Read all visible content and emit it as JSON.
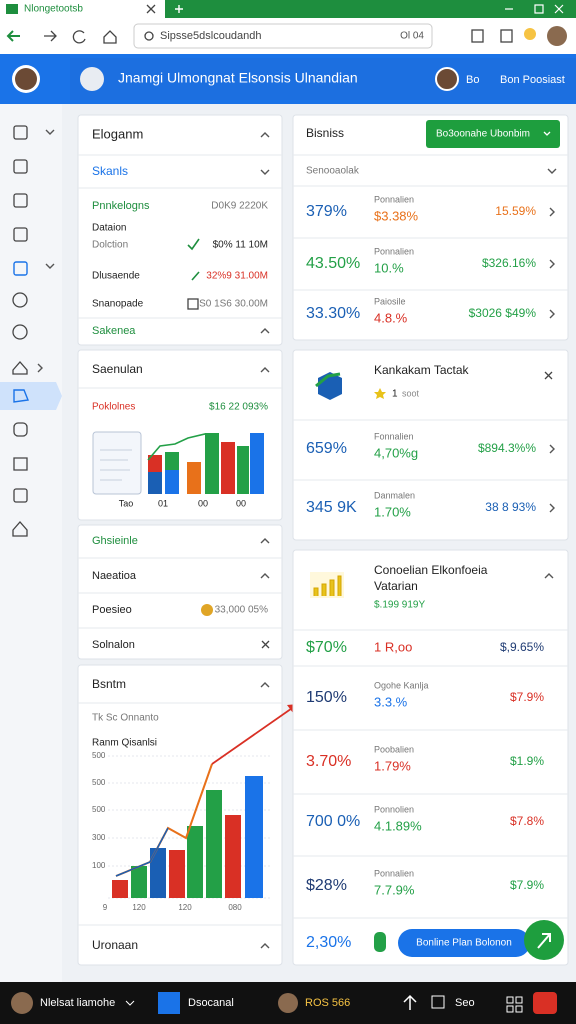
{
  "browser": {
    "tab_title": "Nlongetootsb",
    "url": "Sipsse5dslcoudandh",
    "url_info": "Ol 04"
  },
  "header": {
    "title": "Jnamgi Ulmongnat Elsonsis Ulnandian",
    "user_initials": "Bo",
    "user_name": "Bon Poosiast"
  },
  "left": {
    "card1": {
      "title": "Eloganm",
      "section": "Skanls",
      "group": "Pnnkelogns",
      "group_value": "D0K9 2220K",
      "item1_label": "Dataion",
      "item1_sublabel": "Dolction",
      "item1_value": "$0% 11 10M",
      "item2_label": "Dlusaende",
      "item2_value": "32%9 31.00M",
      "item3_label": "Snanopade",
      "item3_value": "S0 1S6 30.00M",
      "footer": "Sakenea"
    },
    "card2": {
      "title": "Saenulan",
      "label": "Poklolnes",
      "value": "$16 22 093%",
      "x_labels": [
        "Tao",
        "01",
        "00",
        "00"
      ]
    },
    "card3": {
      "title": "Ghsieinle",
      "item1": "Naeatioa",
      "item2": "Poesieo",
      "item2_value": "33,000 05%",
      "item3": "Solnalon"
    },
    "card4": {
      "title": "Bsntm",
      "subtitle": "Tk Sc Onnanto",
      "chart_title": "Ranm Qisanlsi",
      "y_labels": [
        "500",
        "500",
        "500",
        "300",
        "100"
      ],
      "x_labels": [
        "9",
        "120",
        "120",
        "080"
      ],
      "footer": "Uronaan"
    }
  },
  "right": {
    "card1": {
      "title": "Bisniss",
      "button": "Bo3oonahe Ubonbim",
      "filter": "Senooaolak",
      "rows": [
        {
          "pct": "379%",
          "pct_color": "#1a5fb4",
          "label": "Ponnalien",
          "value": "$3.38%",
          "value_color": "#e8711a",
          "change": "15.59%",
          "change_color": "#e8711a"
        },
        {
          "pct": "43.50%",
          "pct_color": "#23a047",
          "label": "Ponnalien",
          "value": "10.%",
          "value_color": "#23a047",
          "change": "$326.16%",
          "change_color": "#23a047"
        },
        {
          "pct": "33.30%",
          "pct_color": "#1a5fb4",
          "label": "Paiosile",
          "value": "4.8.%",
          "value_color": "#d93025",
          "change": "$3026 $49%",
          "change_color": "#23a047"
        }
      ]
    },
    "card2": {
      "title": "Kankakam Tactak",
      "rating": "1",
      "rating_note": "soot",
      "rows": [
        {
          "pct": "659%",
          "pct_color": "#1a5fb4",
          "label": "Fonnalien",
          "value": "4,70%g",
          "value_color": "#23a047",
          "change": "$894.3%%",
          "change_color": "#23a047"
        },
        {
          "pct": "345 9K",
          "pct_color": "#1a5fb4",
          "label": "Danmalen",
          "value": "1.70%",
          "value_color": "#23a047",
          "change": "38 8 93%",
          "change_color": "#1a5fb4"
        }
      ]
    },
    "card3": {
      "title_line1": "Conoelian Elkonfoeia",
      "title_line2": "Vatarian",
      "amount": "$.199 919Y",
      "rows": [
        {
          "pct": "$70%",
          "pct_color": "#23a047",
          "value": "1 R,oo",
          "value_color": "#d93025",
          "change": "$,9.65%",
          "change_color": "#1f3b73"
        },
        {
          "pct": "150%",
          "pct_color": "#1f3b73",
          "label": "Ogohe Kanlja",
          "value": "3.3.%",
          "value_color": "#1a73e8",
          "change": "$7.9%",
          "change_color": "#d93025"
        },
        {
          "pct": "3.70%",
          "pct_color": "#d93025",
          "label": "Poobalien",
          "value": "1.79%",
          "value_color": "#d93025",
          "change": "$1.9%",
          "change_color": "#23a047"
        },
        {
          "pct": "700 0%",
          "pct_color": "#1a5fb4",
          "label": "Ponnolien",
          "value": "4.1.89%",
          "value_color": "#23a047",
          "change": "$7.8%",
          "change_color": "#d93025"
        },
        {
          "pct": "$28%",
          "pct_color": "#1f3b73",
          "label": "Ponnalien",
          "value": "7.7.9%",
          "value_color": "#23a047",
          "change": "$7.9%",
          "change_color": "#23a047"
        }
      ],
      "last_pct": "2,30%",
      "button": "Bonline Plan Bolonon"
    }
  },
  "taskbar": {
    "user": "Nlelsat liamohe",
    "app": "Dsocanal",
    "status": "ROS 566",
    "label": "Seo"
  }
}
